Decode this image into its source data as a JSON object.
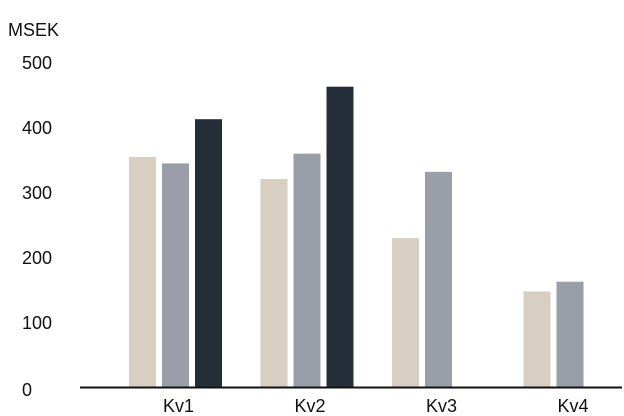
{
  "chart_data": {
    "type": "bar",
    "ylabel": "MSEK",
    "xlabel": "",
    "title": "",
    "categories": [
      "Kv1",
      "Kv2",
      "Kv3",
      "Kv4"
    ],
    "ylim": [
      0,
      500
    ],
    "yticks": [
      0,
      100,
      200,
      300,
      400,
      500
    ],
    "grid": false,
    "legend": "none",
    "series": [
      {
        "color": "#d8cfc2",
        "values": [
          354,
          320,
          229,
          147
        ]
      },
      {
        "color": "#9a9ea8",
        "values": [
          344,
          359,
          331,
          162
        ]
      },
      {
        "color": "#232e38",
        "values": [
          412,
          462,
          null,
          null
        ]
      }
    ]
  }
}
